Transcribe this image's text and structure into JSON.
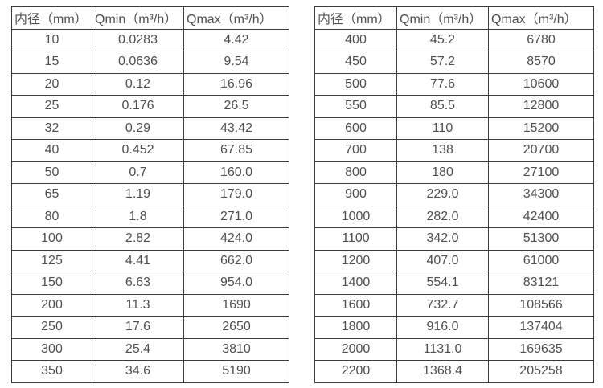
{
  "colors": {
    "background": "#ffffff",
    "text": "#4f4f4f",
    "border": "#3c3c3c"
  },
  "tables": [
    {
      "name": "small-diameter-table",
      "headers": [
        "内径（mm）",
        "Qmin（m³/h）",
        "Qmax（m³/h）"
      ],
      "rows": [
        [
          "10",
          "0.0283",
          "4.42"
        ],
        [
          "15",
          "0.0636",
          "9.54"
        ],
        [
          "20",
          "0.12",
          "16.96"
        ],
        [
          "25",
          "0.176",
          "26.5"
        ],
        [
          "32",
          "0.29",
          "43.42"
        ],
        [
          "40",
          "0.452",
          "67.85"
        ],
        [
          "50",
          "0.7",
          "160.0"
        ],
        [
          "65",
          "1.19",
          "179.0"
        ],
        [
          "80",
          "1.8",
          "271.0"
        ],
        [
          "100",
          "2.82",
          "424.0"
        ],
        [
          "125",
          "4.41",
          "662.0"
        ],
        [
          "150",
          "6.63",
          "954.0"
        ],
        [
          "200",
          "11.3",
          "1690"
        ],
        [
          "250",
          "17.6",
          "2650"
        ],
        [
          "300",
          "25.4",
          "3810"
        ],
        [
          "350",
          "34.6",
          "5190"
        ]
      ]
    },
    {
      "name": "large-diameter-table",
      "headers": [
        "内径（mm）",
        "Qmin（m³/h）",
        "Qmax（m³/h）"
      ],
      "rows": [
        [
          "400",
          "45.2",
          "6780"
        ],
        [
          "450",
          "57.2",
          "8570"
        ],
        [
          "500",
          "77.6",
          "10600"
        ],
        [
          "550",
          "85.5",
          "12800"
        ],
        [
          "600",
          "110",
          "15200"
        ],
        [
          "700",
          "138",
          "20700"
        ],
        [
          "800",
          "180",
          "27100"
        ],
        [
          "900",
          "229.0",
          "34300"
        ],
        [
          "1000",
          "282.0",
          "42400"
        ],
        [
          "1100",
          "342.0",
          "51300"
        ],
        [
          "1200",
          "407.0",
          "61000"
        ],
        [
          "1400",
          "554.1",
          "83121"
        ],
        [
          "1600",
          "732.7",
          "108566"
        ],
        [
          "1800",
          "916.0",
          "137404"
        ],
        [
          "2000",
          "1131.0",
          "169635"
        ],
        [
          "2200",
          "1368.4",
          "205258"
        ]
      ]
    }
  ]
}
